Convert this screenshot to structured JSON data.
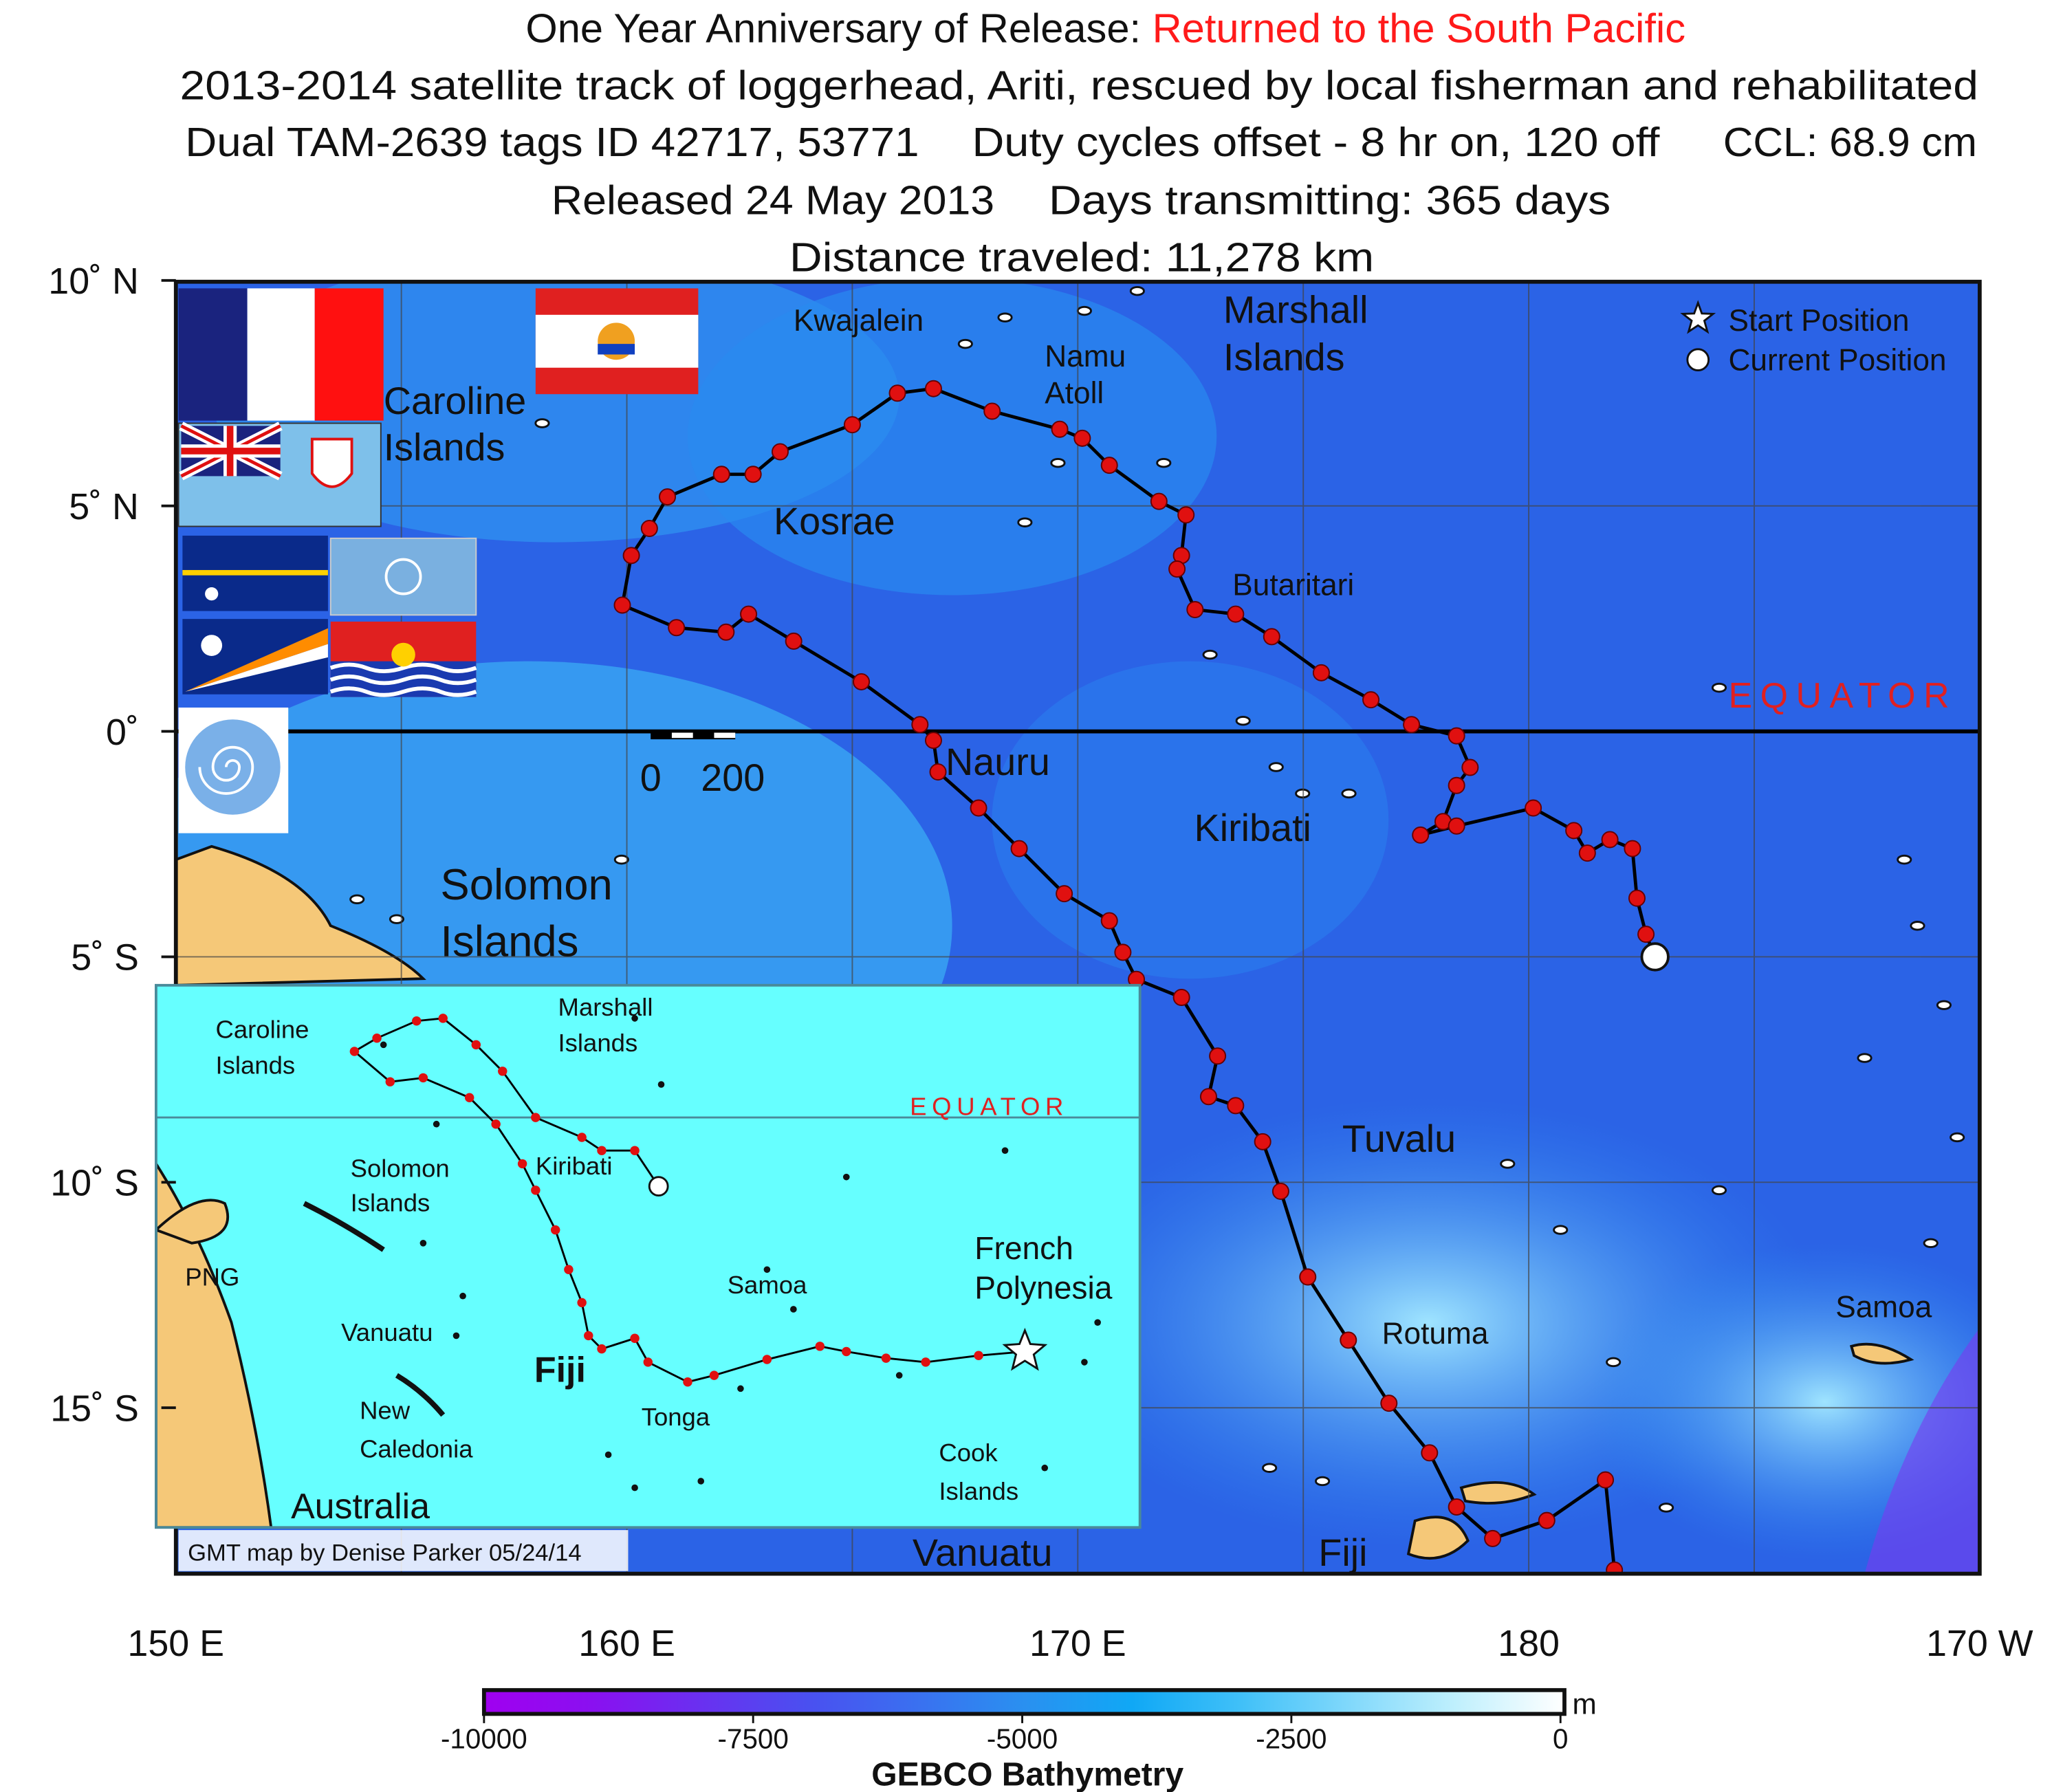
{
  "title": {
    "line1_black": "One Year Anniversary of Release:",
    "line1_red": "Returned to the South Pacific",
    "line2": "2013-2014 satellite track of loggerhead, Ariti, rescued by local fisherman and rehabilitated",
    "line3a": "Dual TAM-2639 tags ID 42717, 53771",
    "line3b": "Duty cycles offset - 8 hr on, 120 off",
    "line3c": "CCL: 68.9 cm",
    "line4a": "Released 24 May 2013",
    "line4b": "Days transmitting:  365 days",
    "line5": "Distance traveled:  11,278 km"
  },
  "colors": {
    "title_red": "#ff1a1a",
    "track": "#e01010",
    "ocean": "#2b63e6",
    "inset_ocean": "#66ffff",
    "land": "#f5c878",
    "equator_label": "#e02020"
  },
  "axes": {
    "lon_range": [
      150,
      190
    ],
    "lat_range": [
      -18.6,
      10
    ],
    "lat_ticks": [
      {
        "v": 10,
        "label": "10˚ N"
      },
      {
        "v": 5,
        "label": "5˚ N"
      },
      {
        "v": 0,
        "label": "0˚"
      },
      {
        "v": -5,
        "label": "5˚ S"
      },
      {
        "v": -10,
        "label": "10˚ S"
      },
      {
        "v": -15,
        "label": "15˚ S"
      }
    ],
    "lon_ticks": [
      {
        "v": 150,
        "label": "150 E"
      },
      {
        "v": 160,
        "label": "160 E"
      },
      {
        "v": 170,
        "label": "170 E"
      },
      {
        "v": 180,
        "label": "180"
      },
      {
        "v": 190,
        "label": "170 W"
      }
    ]
  },
  "labels": {
    "kwajalein": "Kwajalein",
    "namu1": "Namu",
    "namu2": "Atoll",
    "marshall1": "Marshall",
    "marshall2": "Islands",
    "caroline1": "Caroline",
    "caroline2": "Islands",
    "kosrae": "Kosrae",
    "butaritari": "Butaritari",
    "equator": "EQUATOR",
    "nauru": "Nauru",
    "kiribati": "Kiribati",
    "solomon1": "Solomon",
    "solomon2": "Islands",
    "tuvalu": "Tuvalu",
    "rotuma": "Rotuma",
    "samoa": "Samoa",
    "vanuatu": "Vanuatu",
    "fiji": "Fiji",
    "scale_0": "0",
    "scale_200": "200"
  },
  "legend": {
    "start": "Start Position",
    "current": "Current Position"
  },
  "inset": {
    "lon_range": [
      144.8,
      219.2
    ],
    "lat_range": [
      -31,
      10
    ],
    "labels": {
      "caroline1": "Caroline",
      "caroline2": "Islands",
      "marshall1": "Marshall",
      "marshall2": "Islands",
      "equator": "EQUATOR",
      "solomon1": "Solomon",
      "solomon2": "Islands",
      "kiribati": "Kiribati",
      "png": "PNG",
      "samoa": "Samoa",
      "french1": "French",
      "french2": "Polynesia",
      "vanuatu": "Vanuatu",
      "fiji": "Fiji",
      "new1": "New",
      "new2": "Caledonia",
      "tonga": "Tonga",
      "cook1": "Cook",
      "cook2": "Islands",
      "australia": "Australia"
    },
    "track": [
      [
        210.5,
        -17.7
      ],
      [
        207.0,
        -18.0
      ],
      [
        203.0,
        -18.5
      ],
      [
        200.0,
        -18.2
      ],
      [
        197.0,
        -17.7
      ],
      [
        195.0,
        -17.3
      ],
      [
        191.0,
        -18.3
      ],
      [
        187.0,
        -19.5
      ],
      [
        185.0,
        -20.0
      ],
      [
        182.0,
        -18.5
      ],
      [
        181.0,
        -16.7
      ],
      [
        178.5,
        -17.5
      ],
      [
        177.5,
        -16.5
      ],
      [
        177.0,
        -14.0
      ],
      [
        176.0,
        -11.5
      ],
      [
        175.0,
        -8.5
      ],
      [
        173.5,
        -5.5
      ],
      [
        172.5,
        -3.5
      ],
      [
        170.5,
        -0.5
      ],
      [
        168.5,
        1.5
      ],
      [
        165.0,
        3.0
      ],
      [
        162.5,
        2.7
      ],
      [
        159.8,
        5.0
      ],
      [
        161.5,
        6.0
      ],
      [
        164.5,
        7.3
      ],
      [
        166.5,
        7.5
      ],
      [
        169.0,
        5.5
      ],
      [
        171.0,
        3.5
      ],
      [
        173.5,
        0.0
      ],
      [
        177.0,
        -1.5
      ],
      [
        178.5,
        -2.5
      ],
      [
        181.0,
        -2.5
      ],
      [
        182.8,
        -5.2
      ]
    ]
  },
  "credit": "GMT map by Denise Parker 05/24/14",
  "track": [
    [
      181.9,
      -18.6
    ],
    [
      181.7,
      -16.6
    ],
    [
      180.4,
      -17.5
    ],
    [
      179.2,
      -17.9
    ],
    [
      178.4,
      -17.2
    ],
    [
      177.8,
      -16.0
    ],
    [
      176.9,
      -14.9
    ],
    [
      176.0,
      -13.5
    ],
    [
      175.1,
      -12.1
    ],
    [
      174.5,
      -10.2
    ],
    [
      174.1,
      -9.1
    ],
    [
      173.5,
      -8.3
    ],
    [
      172.9,
      -8.1
    ],
    [
      173.1,
      -7.2
    ],
    [
      172.3,
      -5.9
    ],
    [
      171.3,
      -5.5
    ],
    [
      171.0,
      -4.9
    ],
    [
      170.7,
      -4.2
    ],
    [
      169.7,
      -3.6
    ],
    [
      168.7,
      -2.6
    ],
    [
      167.8,
      -1.7
    ],
    [
      166.9,
      -0.9
    ],
    [
      166.8,
      -0.2
    ],
    [
      166.5,
      0.15
    ],
    [
      165.2,
      1.1
    ],
    [
      163.7,
      2.0
    ],
    [
      162.7,
      2.6
    ],
    [
      162.2,
      2.2
    ],
    [
      161.1,
      2.3
    ],
    [
      159.9,
      2.8
    ],
    [
      160.1,
      3.9
    ],
    [
      160.5,
      4.5
    ],
    [
      160.9,
      5.2
    ],
    [
      162.1,
      5.7
    ],
    [
      162.8,
      5.7
    ],
    [
      163.4,
      6.2
    ],
    [
      165.0,
      6.8
    ],
    [
      166.0,
      7.5
    ],
    [
      166.8,
      7.6
    ],
    [
      168.1,
      7.1
    ],
    [
      169.6,
      6.7
    ],
    [
      170.1,
      6.5
    ],
    [
      170.7,
      5.9
    ],
    [
      171.8,
      5.1
    ],
    [
      172.4,
      4.8
    ],
    [
      172.3,
      3.9
    ],
    [
      172.2,
      3.6
    ],
    [
      172.6,
      2.7
    ],
    [
      173.5,
      2.6
    ],
    [
      174.3,
      2.1
    ],
    [
      175.4,
      1.3
    ],
    [
      176.5,
      0.7
    ],
    [
      177.4,
      0.15
    ],
    [
      178.4,
      -0.1
    ],
    [
      178.7,
      -0.8
    ],
    [
      178.4,
      -1.2
    ],
    [
      178.1,
      -2.0
    ],
    [
      177.6,
      -2.3
    ],
    [
      178.4,
      -2.1
    ],
    [
      180.1,
      -1.7
    ],
    [
      181.0,
      -2.2
    ],
    [
      181.3,
      -2.7
    ],
    [
      181.8,
      -2.4
    ],
    [
      182.3,
      -2.6
    ],
    [
      182.4,
      -3.7
    ],
    [
      182.6,
      -4.5
    ]
  ],
  "current_position": [
    182.8,
    -5.0
  ],
  "colorbar": {
    "title": "GEBCO Bathymetry",
    "unit": "m",
    "range": [
      -10000,
      0
    ],
    "ticks": [
      {
        "v": -10000,
        "label": "-10000"
      },
      {
        "v": -7500,
        "label": "-7500"
      },
      {
        "v": -5000,
        "label": "-5000"
      },
      {
        "v": -2500,
        "label": "-2500"
      },
      {
        "v": 0,
        "label": "0"
      }
    ],
    "stops": [
      "#a000f0",
      "#8a10f0",
      "#6a30f0",
      "#4a50f0",
      "#3a70f0",
      "#2a90f0",
      "#10a8f5",
      "#40c0f8",
      "#80d8fb",
      "#c0f0fd",
      "#ffffff"
    ]
  }
}
